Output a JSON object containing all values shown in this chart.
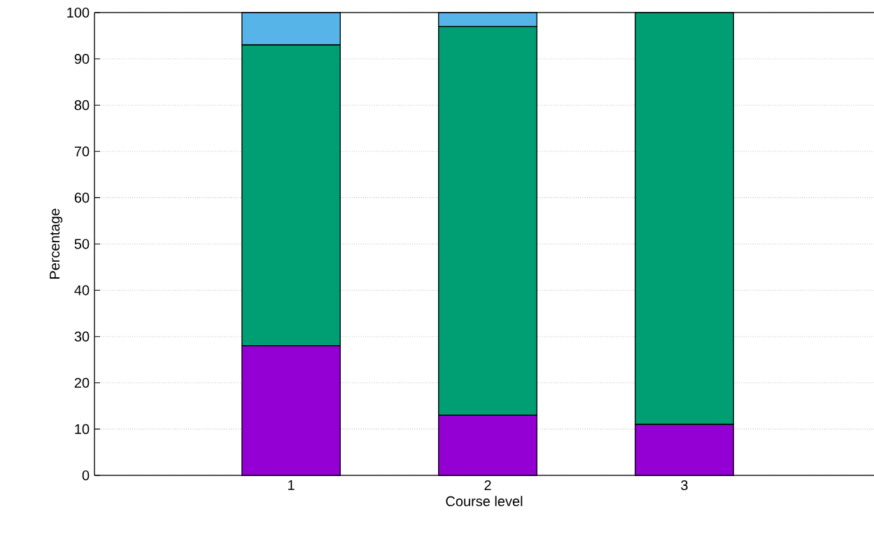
{
  "chart_data": {
    "type": "bar",
    "xlabel": "Course level",
    "ylabel": "Percentage",
    "categories": [
      "1",
      "2",
      "3"
    ],
    "stacked": true,
    "series": [
      {
        "color": "#9400d3",
        "values": [
          28,
          13,
          11
        ]
      },
      {
        "color": "#009e73",
        "values": [
          65,
          84,
          89
        ]
      },
      {
        "color": "#56b4e9",
        "values": [
          7,
          3,
          0
        ]
      }
    ],
    "ylim": [
      0,
      100
    ],
    "yticks": [
      0,
      10,
      20,
      30,
      40,
      50,
      60,
      70,
      80,
      90,
      100
    ],
    "grid": "y"
  }
}
